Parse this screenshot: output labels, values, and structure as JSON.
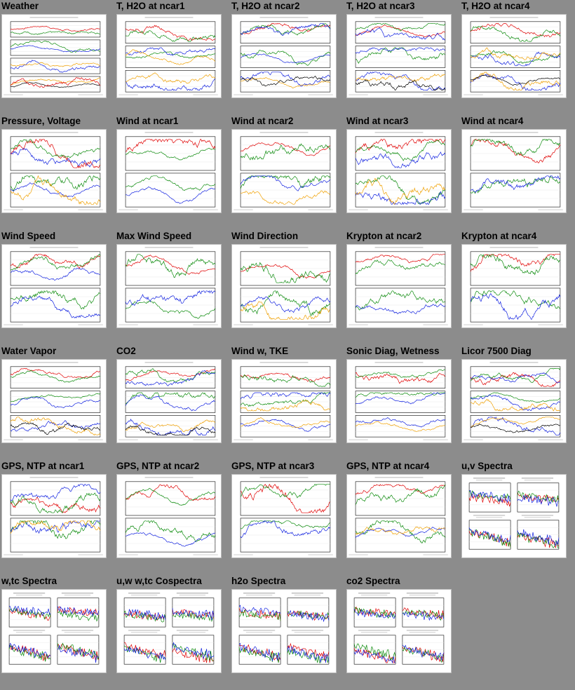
{
  "plots": [
    {
      "title": "Weather",
      "kind": "ts",
      "panels": 4
    },
    {
      "title": "T, H2O at ncar1",
      "kind": "ts",
      "panels": 3
    },
    {
      "title": "T, H2O at ncar2",
      "kind": "ts",
      "panels": 3
    },
    {
      "title": "T, H2O at ncar3",
      "kind": "ts",
      "panels": 3
    },
    {
      "title": "T, H2O at ncar4",
      "kind": "ts",
      "panels": 3
    },
    {
      "title": "Pressure, Voltage",
      "kind": "ts",
      "panels": 2
    },
    {
      "title": "Wind at ncar1",
      "kind": "ts",
      "panels": 2
    },
    {
      "title": "Wind at ncar2",
      "kind": "ts",
      "panels": 2
    },
    {
      "title": "Wind at ncar3",
      "kind": "ts",
      "panels": 2
    },
    {
      "title": "Wind at ncar4",
      "kind": "ts",
      "panels": 2
    },
    {
      "title": "Wind Speed",
      "kind": "ts",
      "panels": 2
    },
    {
      "title": "Max Wind Speed",
      "kind": "ts",
      "panels": 2
    },
    {
      "title": "Wind Direction",
      "kind": "ts",
      "panels": 2
    },
    {
      "title": "Krypton at ncar2",
      "kind": "ts",
      "panels": 2
    },
    {
      "title": "Krypton at ncar4",
      "kind": "ts",
      "panels": 2
    },
    {
      "title": "Water Vapor",
      "kind": "ts",
      "panels": 3
    },
    {
      "title": "CO2",
      "kind": "ts",
      "panels": 3
    },
    {
      "title": "Wind w, TKE",
      "kind": "ts",
      "panels": 3
    },
    {
      "title": "Sonic Diag, Wetness",
      "kind": "ts",
      "panels": 3
    },
    {
      "title": "Licor 7500 Diag",
      "kind": "ts",
      "panels": 3
    },
    {
      "title": "GPS, NTP at ncar1",
      "kind": "ts",
      "panels": 2
    },
    {
      "title": "GPS, NTP at ncar2",
      "kind": "ts",
      "panels": 2
    },
    {
      "title": "GPS, NTP at ncar3",
      "kind": "ts",
      "panels": 2
    },
    {
      "title": "GPS, NTP at ncar4",
      "kind": "ts",
      "panels": 2
    },
    {
      "title": "u,v Spectra",
      "kind": "spec",
      "panels": 4
    },
    {
      "title": "w,tc Spectra",
      "kind": "spec",
      "panels": 4
    },
    {
      "title": "u,w w,tc Cospectra",
      "kind": "spec",
      "panels": 4
    },
    {
      "title": "h2o Spectra",
      "kind": "spec",
      "panels": 4
    },
    {
      "title": "co2 Spectra",
      "kind": "spec",
      "panels": 4
    }
  ],
  "colors": {
    "page_bg": "#8c8c8c",
    "series": [
      "#e00000",
      "#0a8a0a",
      "#1020e0",
      "#f0a000",
      "#000000"
    ]
  }
}
